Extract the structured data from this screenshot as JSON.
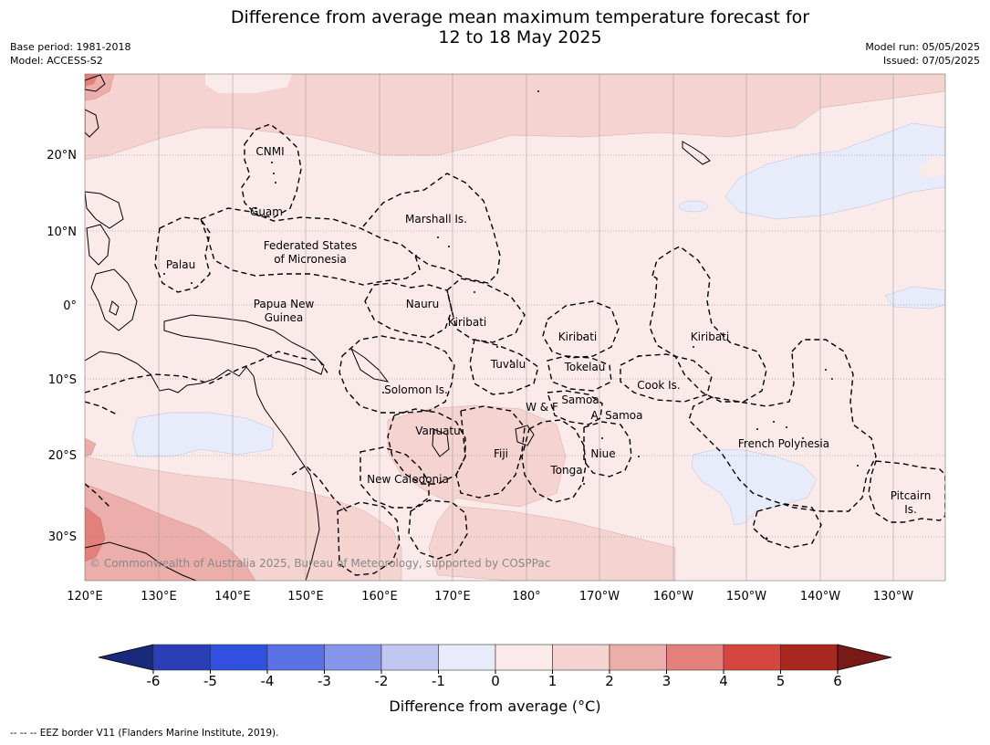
{
  "header": {
    "title_line1": "Difference from average mean maximum temperature forecast for",
    "title_line2": "12 to 18 May 2025",
    "base_period": "Base period: 1981-2018",
    "model": "Model: ACCESS-S2",
    "model_run": "Model run: 05/05/2025",
    "issued": "Issued: 07/05/2025"
  },
  "map": {
    "lat_labels": [
      "20°N",
      "10°N",
      "0°",
      "10°S",
      "20°S",
      "30°S"
    ],
    "lon_labels": [
      "120°E",
      "130°E",
      "140°E",
      "150°E",
      "160°E",
      "170°E",
      "180°",
      "170°W",
      "160°W",
      "150°W",
      "140°W",
      "130°W"
    ],
    "region_labels": [
      "CNMI",
      "Guam",
      "Marshall Is.",
      "Federated States",
      "of Micronesia",
      "Palau",
      "Papua New",
      "Guinea",
      "Nauru",
      "Kiribati",
      "Kiribati",
      "Kiribati",
      "Tuvalu",
      "Tokelau",
      "Cook Is.",
      "Solomon Is.",
      "W & F",
      "Samoa",
      "A. Samoa",
      "Vanuatu",
      "Fiji",
      "Niue",
      "French Polynesia",
      "Tonga",
      "New Caledonia",
      "Pitcairn",
      "Is."
    ],
    "copyright": "© Commonwealth of Australia 2025, Bureau of Meteorology, supported by COSPPac",
    "grid": true
  },
  "colorbar": {
    "ticks": [
      "-6",
      "-5",
      "-4",
      "-3",
      "-2",
      "-1",
      "0",
      "1",
      "2",
      "3",
      "4",
      "5",
      "6"
    ],
    "colors": [
      "#1a2a7a",
      "#2a3fb5",
      "#3250e0",
      "#5a72e4",
      "#8696ea",
      "#c0c8f2",
      "#e8ecfa",
      "#fbeaea",
      "#f5d3d1",
      "#ecaeaa",
      "#e3807a",
      "#d6463e",
      "#a8271f",
      "#781a15"
    ],
    "label": "Difference from average (°C)"
  },
  "footnote": "--  --  -- EEZ border V11 (Flanders Marine Institute, 2019)."
}
